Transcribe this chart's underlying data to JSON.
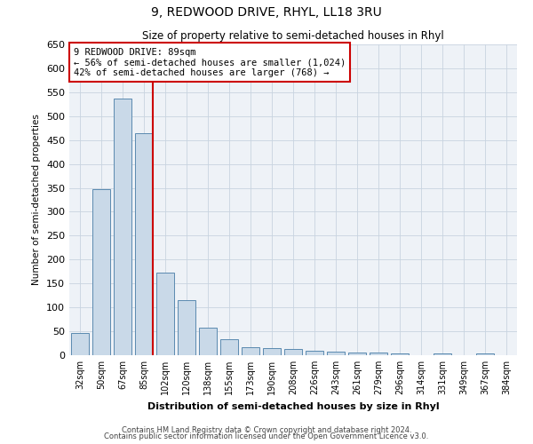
{
  "title": "9, REDWOOD DRIVE, RHYL, LL18 3RU",
  "subtitle": "Size of property relative to semi-detached houses in Rhyl",
  "xlabel": "Distribution of semi-detached houses by size in Rhyl",
  "ylabel": "Number of semi-detached properties",
  "categories": [
    "32sqm",
    "50sqm",
    "67sqm",
    "85sqm",
    "102sqm",
    "120sqm",
    "138sqm",
    "155sqm",
    "173sqm",
    "190sqm",
    "208sqm",
    "226sqm",
    "243sqm",
    "261sqm",
    "279sqm",
    "296sqm",
    "314sqm",
    "331sqm",
    "349sqm",
    "367sqm",
    "384sqm"
  ],
  "values": [
    46,
    348,
    536,
    465,
    173,
    115,
    57,
    33,
    16,
    15,
    13,
    10,
    8,
    6,
    5,
    4,
    0,
    4,
    0,
    4,
    0
  ],
  "bar_color": "#c9d9e8",
  "bar_edge_color": "#5a8ab0",
  "property_line_idx": 3,
  "property_size": "89sqm",
  "pct_smaller": 56,
  "count_smaller": 1024,
  "pct_larger": 42,
  "count_larger": 768,
  "redline_color": "#cc0000",
  "annotation_box_color": "#cc0000",
  "ylim": [
    0,
    650
  ],
  "yticks": [
    0,
    50,
    100,
    150,
    200,
    250,
    300,
    350,
    400,
    450,
    500,
    550,
    600,
    650
  ],
  "background_color": "#eef2f7",
  "grid_color": "#c8d4e0",
  "footer1": "Contains HM Land Registry data © Crown copyright and database right 2024.",
  "footer2": "Contains public sector information licensed under the Open Government Licence v3.0."
}
